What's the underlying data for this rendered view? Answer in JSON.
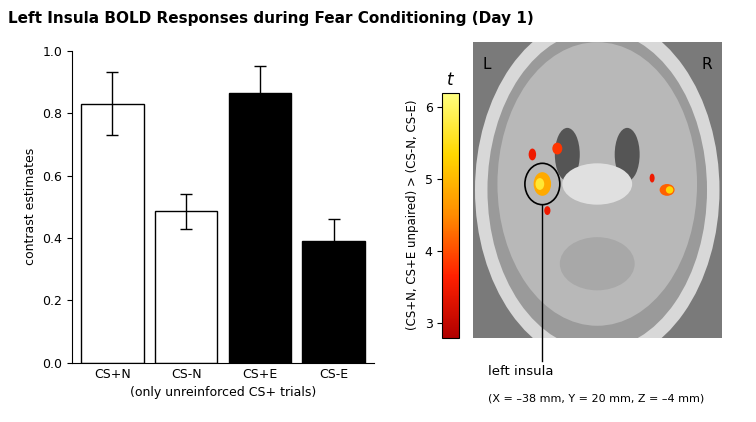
{
  "title": "Left Insula BOLD Responses during Fear Conditioning (Day 1)",
  "chart_data": [
    {
      "type": "bar",
      "categories": [
        "CS+N",
        "CS-N",
        "CS+E",
        "CS-E"
      ],
      "values": [
        0.83,
        0.485,
        0.865,
        0.39
      ],
      "errors": [
        0.1,
        0.055,
        0.085,
        0.07
      ],
      "colors": [
        "#ffffff",
        "#ffffff",
        "#000000",
        "#000000"
      ],
      "y_label": "contrast estimates",
      "x_label": "(only unreinforced CS+ trials)",
      "ylim": [
        0.0,
        1.0
      ],
      "yticks": [
        0.0,
        0.2,
        0.4,
        0.6,
        0.8,
        1.0
      ]
    },
    {
      "type": "image",
      "colorbar_title": "t",
      "colorbar_label": "(CS+N, CS+E unpaired) > (CS-N, CS-E)",
      "colorbar_range": [
        2.8,
        6.2
      ],
      "colorbar_ticks": [
        3,
        4,
        5,
        6
      ],
      "side_labels": [
        "L",
        "R"
      ],
      "annotation": "left insula",
      "coordinates": "(X = –38 mm, Y = 20 mm, Z = –4 mm)"
    }
  ]
}
